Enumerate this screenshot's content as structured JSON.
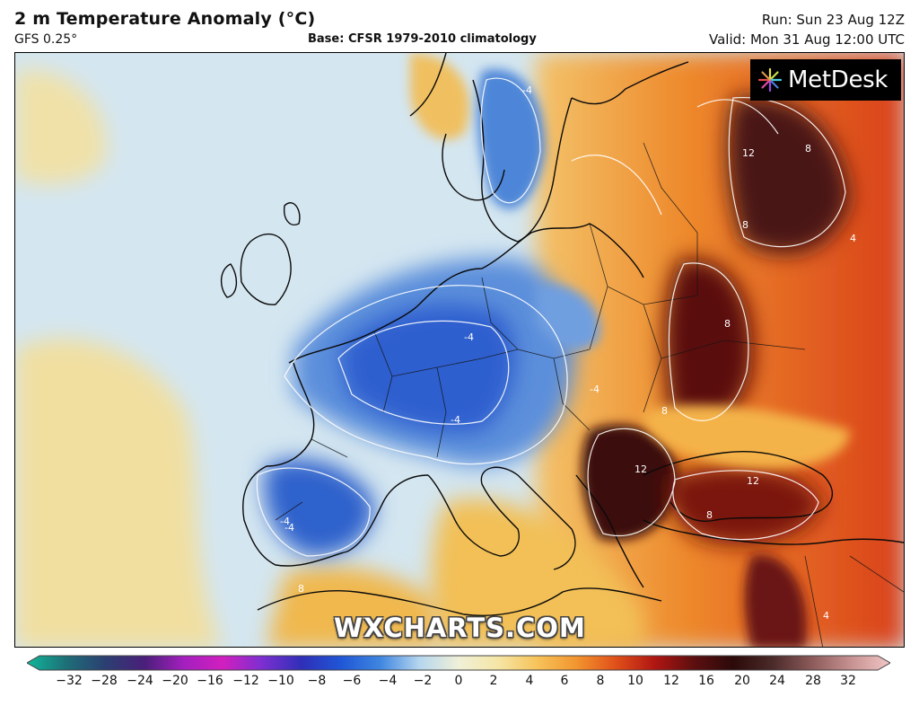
{
  "header": {
    "title": "2 m Temperature Anomaly (°C)",
    "model": "GFS 0.25°",
    "base": "Base: CFSR 1979-2010 climatology",
    "run": "Run: Sun 23 Aug 12Z",
    "valid": "Valid: Mon 31 Aug 12:00 UTC"
  },
  "logo": {
    "text": "MetDesk",
    "icon": "metdesk-star-icon"
  },
  "watermark": "WXCHARTS.COM",
  "map": {
    "region": "Europe",
    "contour_labels": [
      "-4",
      "-4",
      "-4",
      "-4",
      "-4",
      "-4",
      "4",
      "4",
      "8",
      "8",
      "8",
      "8",
      "8",
      "8",
      "12",
      "12",
      "12"
    ]
  },
  "colorbar": {
    "ticks": [
      "−32",
      "−28",
      "−24",
      "−20",
      "−16",
      "−12",
      "−10",
      "−8",
      "−6",
      "−4",
      "−2",
      "0",
      "2",
      "4",
      "6",
      "8",
      "10",
      "12",
      "16",
      "20",
      "24",
      "28",
      "32"
    ],
    "colors": [
      "#10b79a",
      "#1d6f77",
      "#2b3f72",
      "#4a1f7a",
      "#a41fbf",
      "#d21fbf",
      "#7b2fd1",
      "#2f2fb8",
      "#1f56d6",
      "#3f86e0",
      "#b5d6ee",
      "#f0f0d8",
      "#f5e6a6",
      "#f7c35a",
      "#f2952f",
      "#e0501a",
      "#b01612",
      "#5c0f10",
      "#2c0a0a",
      "#4b2a2a",
      "#8c5a5a",
      "#c79191",
      "#f2c6c6"
    ]
  }
}
